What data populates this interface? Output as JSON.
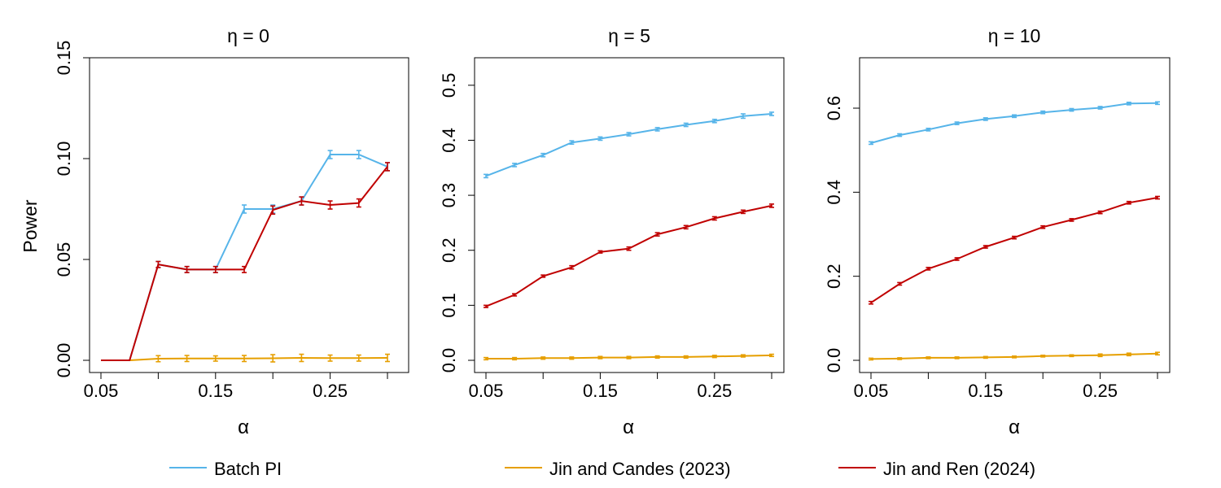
{
  "chart_data": [
    {
      "type": "line",
      "title": "η = 0",
      "xlabel": "α",
      "ylabel": "Power",
      "xlim": [
        0.05,
        0.3
      ],
      "ylim": [
        0.0,
        0.15
      ],
      "xticks": [
        "0.05",
        "0.15",
        "0.25"
      ],
      "yticks": [
        "0.00",
        "0.05",
        "0.10",
        "0.15"
      ],
      "x": [
        0.05,
        0.075,
        0.1,
        0.125,
        0.15,
        0.175,
        0.2,
        0.225,
        0.25,
        0.275,
        0.3
      ],
      "series": [
        {
          "name": "Batch PI",
          "color": "#56B4E9",
          "values": [
            0.0,
            0.0,
            0.0475,
            0.045,
            0.045,
            0.075,
            0.075,
            0.079,
            0.102,
            0.102,
            0.096
          ],
          "err": [
            0,
            0,
            0.0015,
            0.0015,
            0.0015,
            0.002,
            0.002,
            0.002,
            0.002,
            0.002,
            0.002
          ]
        },
        {
          "name": "Jin and Candes (2023)",
          "color": "#E69F00",
          "values": [
            0.0,
            0.0,
            0.0008,
            0.0009,
            0.0009,
            0.0009,
            0.001,
            0.0012,
            0.0011,
            0.0011,
            0.0012
          ],
          "err": [
            0,
            0,
            0.0015,
            0.0015,
            0.0013,
            0.0015,
            0.0018,
            0.0018,
            0.0015,
            0.0015,
            0.0018
          ]
        },
        {
          "name": "Jin and Ren (2024)",
          "color": "#C00000",
          "values": [
            0.0,
            0.0,
            0.0475,
            0.045,
            0.045,
            0.045,
            0.0745,
            0.079,
            0.077,
            0.078,
            0.096
          ],
          "err": [
            0,
            0,
            0.0015,
            0.0015,
            0.0015,
            0.0015,
            0.002,
            0.002,
            0.002,
            0.002,
            0.002
          ]
        }
      ]
    },
    {
      "type": "line",
      "title": "η = 5",
      "xlabel": "α",
      "ylabel": "",
      "xlim": [
        0.05,
        0.3
      ],
      "ylim": [
        0.0,
        0.55
      ],
      "xticks": [
        "0.05",
        "0.15",
        "0.25"
      ],
      "yticks": [
        "0.0",
        "0.1",
        "0.2",
        "0.3",
        "0.4",
        "0.5"
      ],
      "x": [
        0.05,
        0.075,
        0.1,
        0.125,
        0.15,
        0.175,
        0.2,
        0.225,
        0.25,
        0.275,
        0.3
      ],
      "series": [
        {
          "name": "Batch PI",
          "color": "#56B4E9",
          "values": [
            0.335,
            0.355,
            0.373,
            0.396,
            0.403,
            0.411,
            0.42,
            0.428,
            0.435,
            0.444,
            0.448
          ],
          "err": [
            0.003,
            0.003,
            0.003,
            0.003,
            0.003,
            0.003,
            0.003,
            0.003,
            0.003,
            0.004,
            0.003
          ]
        },
        {
          "name": "Jin and Candes (2023)",
          "color": "#E69F00",
          "values": [
            0.003,
            0.003,
            0.004,
            0.004,
            0.005,
            0.005,
            0.006,
            0.006,
            0.007,
            0.008,
            0.009
          ],
          "err": [
            0.002,
            0.002,
            0.002,
            0.002,
            0.002,
            0.002,
            0.002,
            0.002,
            0.002,
            0.002,
            0.002
          ]
        },
        {
          "name": "Jin and Ren (2024)",
          "color": "#C00000",
          "values": [
            0.098,
            0.119,
            0.153,
            0.169,
            0.197,
            0.203,
            0.229,
            0.242,
            0.258,
            0.27,
            0.281
          ],
          "err": [
            0.002,
            0.002,
            0.002,
            0.003,
            0.002,
            0.003,
            0.003,
            0.003,
            0.003,
            0.003,
            0.003
          ]
        }
      ]
    },
    {
      "type": "line",
      "title": "η = 10",
      "xlabel": "α",
      "ylabel": "",
      "xlim": [
        0.05,
        0.3
      ],
      "ylim": [
        0.0,
        0.72
      ],
      "xticks": [
        "0.05",
        "0.15",
        "0.25"
      ],
      "yticks": [
        "0.0",
        "0.2",
        "0.4",
        "0.6"
      ],
      "x": [
        0.05,
        0.075,
        0.1,
        0.125,
        0.15,
        0.175,
        0.2,
        0.225,
        0.25,
        0.275,
        0.3
      ],
      "series": [
        {
          "name": "Batch PI",
          "color": "#56B4E9",
          "values": [
            0.517,
            0.536,
            0.549,
            0.564,
            0.574,
            0.581,
            0.59,
            0.596,
            0.601,
            0.611,
            0.612
          ],
          "err": [
            0.003,
            0.003,
            0.003,
            0.003,
            0.003,
            0.003,
            0.003,
            0.003,
            0.003,
            0.003,
            0.003
          ]
        },
        {
          "name": "Jin and Candes (2023)",
          "color": "#E69F00",
          "values": [
            0.003,
            0.004,
            0.006,
            0.006,
            0.007,
            0.008,
            0.01,
            0.011,
            0.012,
            0.014,
            0.016
          ],
          "err": [
            0.002,
            0.002,
            0.002,
            0.002,
            0.002,
            0.002,
            0.002,
            0.002,
            0.003,
            0.003,
            0.003
          ]
        },
        {
          "name": "Jin and Ren (2024)",
          "color": "#C00000",
          "values": [
            0.137,
            0.182,
            0.218,
            0.241,
            0.27,
            0.292,
            0.317,
            0.334,
            0.352,
            0.375,
            0.387
          ],
          "err": [
            0.003,
            0.003,
            0.003,
            0.003,
            0.003,
            0.003,
            0.003,
            0.003,
            0.003,
            0.003,
            0.003
          ]
        }
      ]
    }
  ],
  "legend": {
    "items": [
      {
        "label": "Batch PI",
        "color": "#56B4E9"
      },
      {
        "label": "Jin and Candes (2023)",
        "color": "#E69F00"
      },
      {
        "label": "Jin and Ren (2024)",
        "color": "#C00000"
      }
    ]
  }
}
